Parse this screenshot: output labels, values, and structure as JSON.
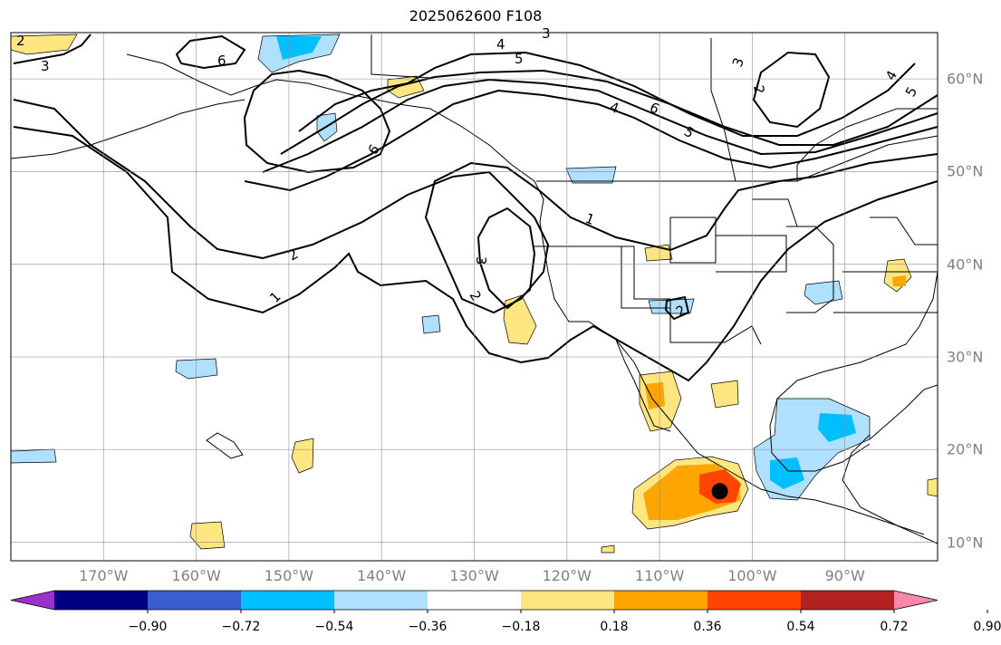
{
  "title": "2025062600 F108",
  "map": {
    "projection": "equirectangular",
    "extent": {
      "lon_min": -180,
      "lon_max": -80,
      "lat_min": 8,
      "lat_max": 65
    },
    "gridlines": true,
    "lon_ticks": [
      {
        "lon": -170,
        "label": "170°W"
      },
      {
        "lon": -160,
        "label": "160°W"
      },
      {
        "lon": -150,
        "label": "150°W"
      },
      {
        "lon": -140,
        "label": "140°W"
      },
      {
        "lon": -130,
        "label": "130°W"
      },
      {
        "lon": -120,
        "label": "120°W"
      },
      {
        "lon": -110,
        "label": "110°W"
      },
      {
        "lon": -100,
        "label": "100°W"
      },
      {
        "lon": -90,
        "label": "90°W"
      }
    ],
    "lat_ticks": [
      {
        "lat": 60,
        "label": "60°N"
      },
      {
        "lat": 50,
        "label": "50°N"
      },
      {
        "lat": 40,
        "label": "40°N"
      },
      {
        "lat": 30,
        "label": "30°N"
      },
      {
        "lat": 20,
        "label": "20°N"
      },
      {
        "lat": 10,
        "label": "10°N"
      }
    ],
    "contour_labels": [
      "1",
      "2",
      "3",
      "4",
      "5",
      "6"
    ],
    "storm_marker": {
      "lon": -103.5,
      "lat": 15.5,
      "color": "#000000"
    }
  },
  "colorbar": {
    "extend": "both",
    "under_color": "#9932cc",
    "over_color": "#ff88aa",
    "colors": [
      "#000080",
      "#3a5fcd",
      "#00bfff",
      "#b0e0ff",
      "#ffffff",
      "#ffe680",
      "#ffa500",
      "#ff4500",
      "#b22222"
    ],
    "tick_labels": [
      "−0.90",
      "−0.72",
      "−0.54",
      "−0.36",
      "−0.18",
      "0.18",
      "0.36",
      "0.54",
      "0.72",
      "0.90"
    ]
  }
}
